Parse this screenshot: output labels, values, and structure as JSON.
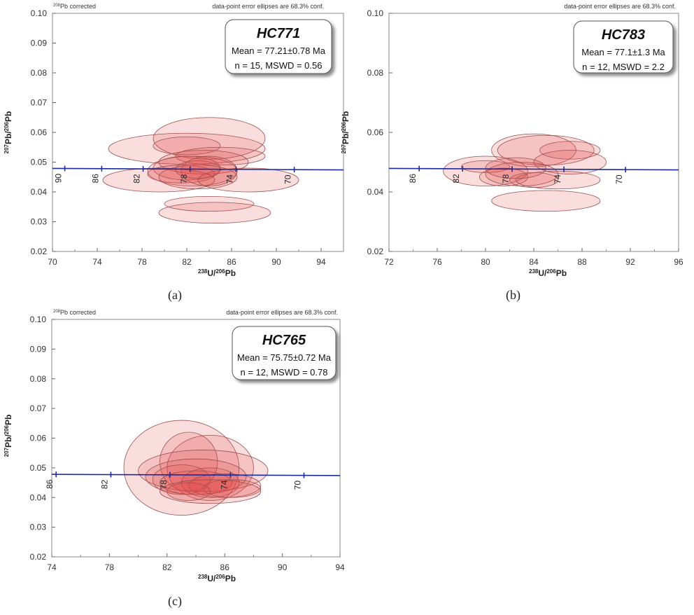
{
  "chart_data": [
    {
      "type": "scatter",
      "panel": "a",
      "caption": "(a)",
      "sample": "HC771",
      "mean_text": "Mean = 77.21±0.78 Ma",
      "n_text": "n = 15, MSWD = 0.56",
      "corrected_note": "Pb corrected",
      "corrected_sup": "208",
      "error_note": "data-point  error ellipses  are 68.3%  conf.",
      "xlabel": "U/Pb",
      "ylabel": "Pb/Pb",
      "xlim": [
        70,
        96
      ],
      "ylim": [
        0.02,
        0.1
      ],
      "x_ticks": [
        70,
        74,
        78,
        82,
        86,
        90,
        94
      ],
      "y_ticks": [
        0.02,
        0.03,
        0.04,
        0.05,
        0.06,
        0.07,
        0.08,
        0.09,
        0.1
      ],
      "concordia": {
        "y_start": 0.0479,
        "y_end": 0.0474,
        "ages": [
          {
            "label": "90",
            "x": 71.1
          },
          {
            "label": "86",
            "x": 74.4
          },
          {
            "label": "82",
            "x": 78.1
          },
          {
            "label": "78",
            "x": 82.3
          },
          {
            "label": "74",
            "x": 86.4
          },
          {
            "label": "70",
            "x": 91.6
          }
        ]
      },
      "ellipses": [
        {
          "x": 82.0,
          "y": 0.0545,
          "rx": 7.0,
          "ry": 0.0052
        },
        {
          "x": 84.0,
          "y": 0.058,
          "rx": 5.0,
          "ry": 0.007
        },
        {
          "x": 82.0,
          "y": 0.0555,
          "rx": 3.0,
          "ry": 0.003
        },
        {
          "x": 85.0,
          "y": 0.052,
          "rx": 4.0,
          "ry": 0.003
        },
        {
          "x": 83.5,
          "y": 0.05,
          "rx": 4.0,
          "ry": 0.004
        },
        {
          "x": 82.0,
          "y": 0.048,
          "rx": 3.0,
          "ry": 0.004
        },
        {
          "x": 82.5,
          "y": 0.047,
          "rx": 4.0,
          "ry": 0.005
        },
        {
          "x": 81.5,
          "y": 0.046,
          "rx": 3.0,
          "ry": 0.003
        },
        {
          "x": 83.0,
          "y": 0.045,
          "rx": 3.5,
          "ry": 0.004
        },
        {
          "x": 84.0,
          "y": 0.047,
          "rx": 2.5,
          "ry": 0.005
        },
        {
          "x": 79.5,
          "y": 0.044,
          "rx": 5.0,
          "ry": 0.004
        },
        {
          "x": 87.5,
          "y": 0.044,
          "rx": 4.5,
          "ry": 0.004
        },
        {
          "x": 84.0,
          "y": 0.036,
          "rx": 4.0,
          "ry": 0.0025
        },
        {
          "x": 84.5,
          "y": 0.033,
          "rx": 5.0,
          "ry": 0.0035
        },
        {
          "x": 83.0,
          "y": 0.0475,
          "rx": 2.0,
          "ry": 0.003
        }
      ]
    },
    {
      "type": "scatter",
      "panel": "b",
      "caption": "(b)",
      "sample": "HC783",
      "mean_text": "Mean = 77.1±1.3 Ma",
      "n_text": "n = 12, MSWD = 2.2",
      "error_note": "data-point  error ellipses  are 68.3%  conf.",
      "xlabel": "U/Pb",
      "ylabel": "Pb/Pb",
      "xlim": [
        72,
        96
      ],
      "ylim": [
        0.02,
        0.1
      ],
      "x_ticks": [
        72,
        76,
        80,
        84,
        88,
        92,
        96
      ],
      "y_ticks": [
        0.02,
        0.04,
        0.06,
        0.08,
        0.1
      ],
      "concordia": {
        "y_start": 0.0479,
        "y_end": 0.0474,
        "ages": [
          {
            "label": "86",
            "x": 74.5
          },
          {
            "label": "82",
            "x": 78.1
          },
          {
            "label": "78",
            "x": 82.2
          },
          {
            "label": "74",
            "x": 86.5
          },
          {
            "label": "70",
            "x": 91.6
          }
        ]
      },
      "ellipses": [
        {
          "x": 84.0,
          "y": 0.054,
          "rx": 3.5,
          "ry": 0.0055
        },
        {
          "x": 85.0,
          "y": 0.054,
          "rx": 4.0,
          "ry": 0.005
        },
        {
          "x": 87.0,
          "y": 0.054,
          "rx": 2.5,
          "ry": 0.003
        },
        {
          "x": 87.0,
          "y": 0.05,
          "rx": 3.0,
          "ry": 0.004
        },
        {
          "x": 80.0,
          "y": 0.0485,
          "rx": 2.0,
          "ry": 0.002
        },
        {
          "x": 80.0,
          "y": 0.047,
          "rx": 3.5,
          "ry": 0.005
        },
        {
          "x": 81.5,
          "y": 0.045,
          "rx": 2.0,
          "ry": 0.003
        },
        {
          "x": 83.0,
          "y": 0.046,
          "rx": 3.0,
          "ry": 0.004
        },
        {
          "x": 84.0,
          "y": 0.044,
          "rx": 2.0,
          "ry": 0.0025
        },
        {
          "x": 86.0,
          "y": 0.044,
          "rx": 3.5,
          "ry": 0.003
        },
        {
          "x": 82.5,
          "y": 0.048,
          "rx": 2.5,
          "ry": 0.0035
        },
        {
          "x": 85.0,
          "y": 0.037,
          "rx": 4.5,
          "ry": 0.0035
        }
      ]
    },
    {
      "type": "scatter",
      "panel": "c",
      "caption": "(c)",
      "sample": "HC765",
      "mean_text": "Mean = 75.75±0.72 Ma",
      "n_text": "n = 12, MSWD = 0.78",
      "corrected_note": "Pb corrected",
      "corrected_sup": "208",
      "error_note": "data-point  error ellipses  are 68.3%  conf.",
      "xlabel": "U/Pb",
      "ylabel": "Pb/Pb",
      "xlim": [
        74,
        94
      ],
      "ylim": [
        0.02,
        0.1
      ],
      "x_ticks": [
        74,
        78,
        82,
        86,
        90,
        94
      ],
      "y_ticks": [
        0.02,
        0.03,
        0.04,
        0.05,
        0.06,
        0.07,
        0.08,
        0.09,
        0.1
      ],
      "concordia": {
        "y_start": 0.0478,
        "y_end": 0.0474,
        "ages": [
          {
            "label": "86",
            "x": 74.3
          },
          {
            "label": "82",
            "x": 78.1
          },
          {
            "label": "78",
            "x": 82.2
          },
          {
            "label": "74",
            "x": 86.4
          },
          {
            "label": "70",
            "x": 91.5
          }
        ]
      },
      "ellipses": [
        {
          "x": 83.0,
          "y": 0.05,
          "rx": 4.0,
          "ry": 0.016
        },
        {
          "x": 85.0,
          "y": 0.05,
          "rx": 3.0,
          "ry": 0.011
        },
        {
          "x": 83.5,
          "y": 0.052,
          "rx": 2.0,
          "ry": 0.01
        },
        {
          "x": 84.5,
          "y": 0.049,
          "rx": 4.5,
          "ry": 0.007
        },
        {
          "x": 84.0,
          "y": 0.047,
          "rx": 3.5,
          "ry": 0.006
        },
        {
          "x": 83.0,
          "y": 0.046,
          "rx": 2.0,
          "ry": 0.005
        },
        {
          "x": 84.0,
          "y": 0.045,
          "rx": 2.5,
          "ry": 0.004
        },
        {
          "x": 85.0,
          "y": 0.045,
          "rx": 2.0,
          "ry": 0.005
        },
        {
          "x": 86.0,
          "y": 0.044,
          "rx": 2.5,
          "ry": 0.004
        },
        {
          "x": 86.5,
          "y": 0.043,
          "rx": 2.0,
          "ry": 0.003
        },
        {
          "x": 85.0,
          "y": 0.042,
          "rx": 3.5,
          "ry": 0.004
        },
        {
          "x": 83.5,
          "y": 0.042,
          "rx": 1.5,
          "ry": 0.003
        }
      ]
    }
  ]
}
